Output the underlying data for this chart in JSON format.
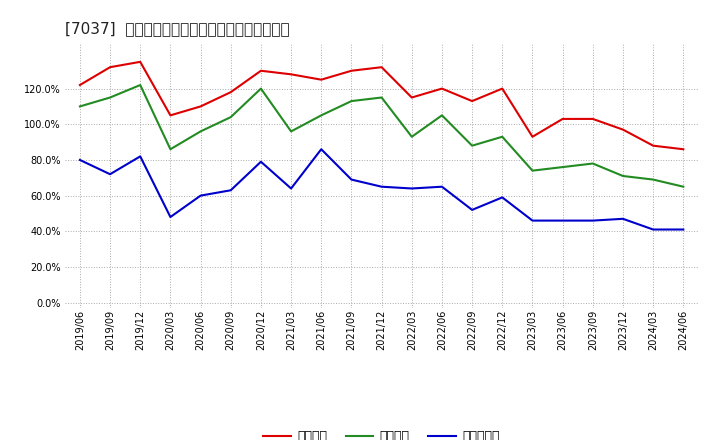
{
  "title": "[7037]  流動比率、当座比率、現預金比率の推移",
  "background_color": "#ffffff",
  "plot_bg_color": "#ffffff",
  "grid_color": "#aaaaaa",
  "legend_labels": [
    "流動比率",
    "当座比率",
    "現預金比率"
  ],
  "line_colors": [
    "#dd0000",
    "#228B22",
    "#0000cc"
  ],
  "dates": [
    "2019/06",
    "2019/09",
    "2019/12",
    "2020/03",
    "2020/06",
    "2020/09",
    "2020/12",
    "2021/03",
    "2021/06",
    "2021/09",
    "2021/12",
    "2022/03",
    "2022/06",
    "2022/09",
    "2022/12",
    "2023/03",
    "2023/06",
    "2023/09",
    "2023/12",
    "2024/03",
    "2024/06"
  ],
  "ryudo": [
    122,
    132,
    135,
    105,
    110,
    118,
    130,
    128,
    125,
    130,
    132,
    115,
    120,
    113,
    120,
    93,
    103,
    103,
    97,
    88,
    86
  ],
  "touza": [
    110,
    115,
    122,
    86,
    96,
    104,
    120,
    96,
    105,
    113,
    115,
    93,
    105,
    88,
    93,
    74,
    76,
    78,
    71,
    69,
    65
  ],
  "genkin": [
    80,
    72,
    82,
    48,
    60,
    63,
    79,
    64,
    86,
    69,
    65,
    64,
    65,
    52,
    59,
    46,
    46,
    46,
    47,
    41,
    41
  ],
  "yticks": [
    0,
    20,
    40,
    60,
    80,
    100,
    120
  ],
  "ylim": [
    -3,
    145
  ],
  "title_fontsize": 11,
  "tick_fontsize": 7,
  "legend_fontsize": 9
}
